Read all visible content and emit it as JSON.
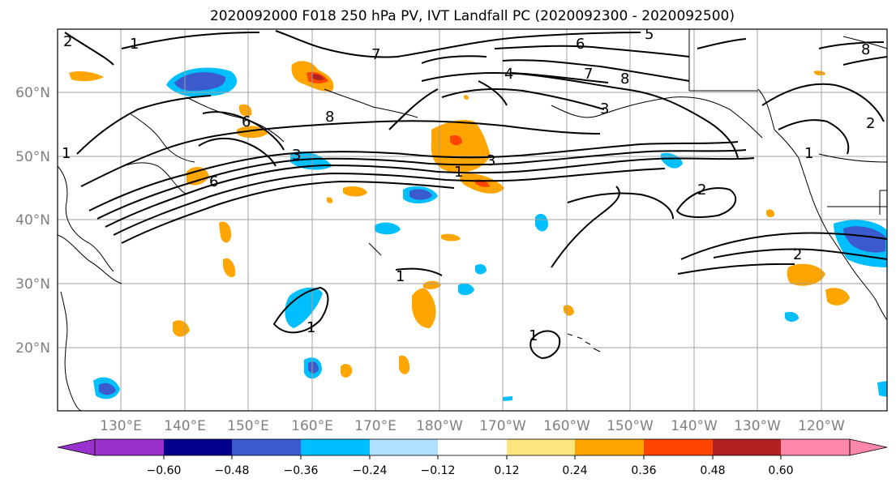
{
  "title": "2020092000 F018 250 hPa PV, IVT Landfall PC (2020092300 - 2020092500)",
  "map": {
    "lat_labels": [
      "60°N",
      "50°N",
      "40°N",
      "30°N",
      "20°N"
    ],
    "lon_labels": [
      "130°E",
      "140°E",
      "150°E",
      "160°E",
      "170°E",
      "180°W",
      "170°W",
      "160°W",
      "150°W",
      "140°W",
      "130°W",
      "120°W"
    ],
    "contour_labels": [
      "2",
      "1",
      "7",
      "6",
      "5",
      "8",
      "4",
      "7",
      "8",
      "8",
      "3",
      "6",
      "6",
      "1",
      "3",
      "1",
      "3",
      "2",
      "2",
      "1",
      "1",
      "1",
      "1",
      "2"
    ]
  },
  "colorbar": {
    "ticks": [
      "−0.60",
      "−0.48",
      "−0.36",
      "−0.24",
      "−0.12",
      "0.12",
      "0.24",
      "0.36",
      "0.48",
      "0.60"
    ],
    "colors": [
      "#9932CC",
      "#00008B",
      "#3A5ACD",
      "#00BFFF",
      "#B0E0FF",
      "#FFFFFF",
      "#FFE680",
      "#FFA500",
      "#FF4500",
      "#B22222",
      "#FF88AA"
    ]
  }
}
